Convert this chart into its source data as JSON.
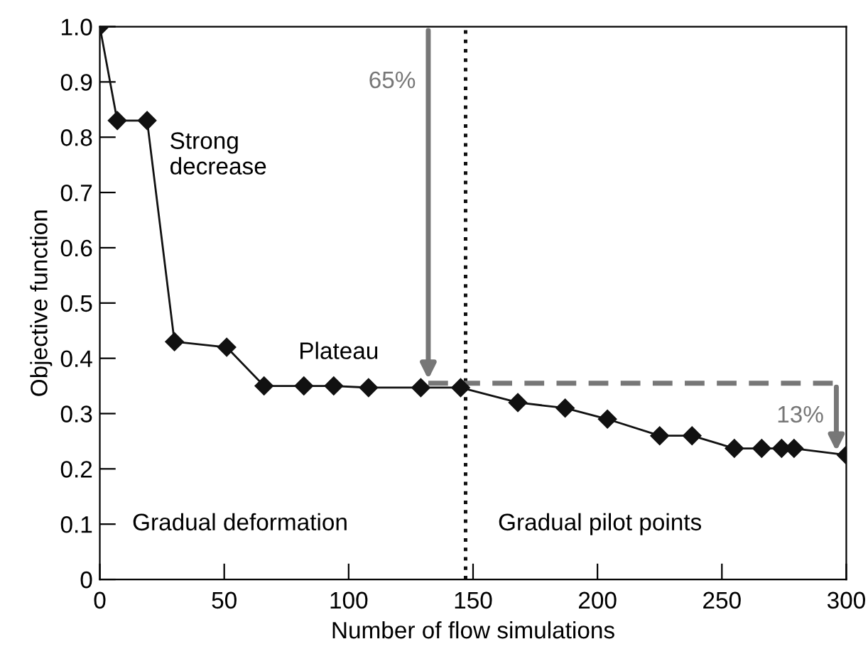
{
  "chart_data": {
    "type": "line",
    "xlabel": "Number of flow simulations",
    "ylabel": "Objective function",
    "xlim": [
      0,
      300
    ],
    "ylim": [
      0,
      1.0
    ],
    "xticks": [
      0,
      50,
      100,
      150,
      200,
      250,
      300
    ],
    "yticks": [
      0,
      0.1,
      0.2,
      0.3,
      0.4,
      0.5,
      0.6,
      0.7,
      0.8,
      0.9,
      {
        "value": 1.0,
        "label": "1.0"
      }
    ],
    "grid": false,
    "marker": "diamond",
    "line_style": "solid",
    "series": [
      {
        "color": "#111111",
        "x": [
          0,
          7,
          19,
          30,
          51,
          66,
          82,
          94,
          108,
          129,
          145,
          168,
          187,
          204,
          225,
          238,
          255,
          266,
          274,
          279,
          300
        ],
        "values": [
          1.0,
          0.83,
          0.83,
          0.43,
          0.42,
          0.35,
          0.35,
          0.35,
          0.347,
          0.347,
          0.347,
          0.32,
          0.31,
          0.29,
          0.26,
          0.26,
          0.237,
          0.237,
          0.237,
          0.237,
          0.225
        ]
      },
      {
        "color": "#777777",
        "type": "line",
        "marker": "none",
        "line_style": "dashed",
        "x": [
          132,
          296
        ],
        "values": [
          0.355,
          0.355
        ]
      }
    ],
    "ref_lines": [
      {
        "axis": "x",
        "value": 147,
        "color": "#111111",
        "line_style": "dotted"
      }
    ],
    "annotations": [
      "65%",
      "13%",
      "Strong decrease",
      "Plateau",
      "Gradual deformation",
      "Gradual pilot points"
    ]
  }
}
